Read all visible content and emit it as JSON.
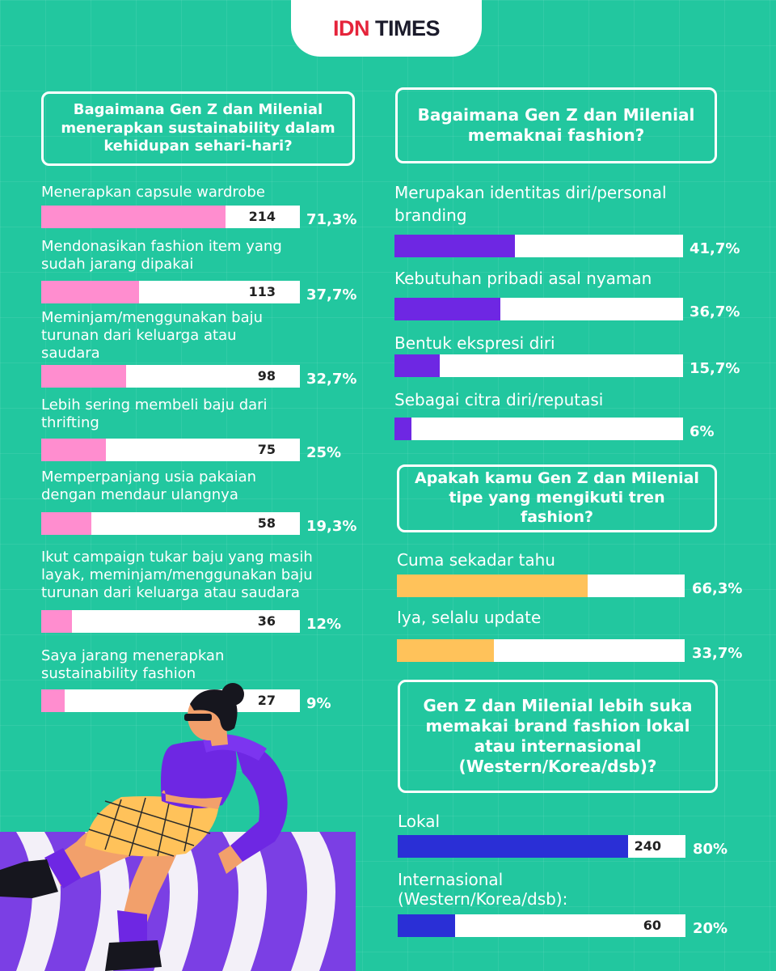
{
  "logo": {
    "brand": "IDN",
    "brand2": "TIMES"
  },
  "colors": {
    "background": "#22c79f",
    "pink": "#ff8dcf",
    "purple": "#6e27e3",
    "orange": "#ffc25a",
    "blue": "#2a2fd6",
    "brand_red": "#e5243b"
  },
  "chart_data": [
    {
      "type": "bar",
      "title": "Bagaimana Gen Z dan Milenial menerapkan sustainability dalam kehidupan sehari-hari?",
      "categories": [
        [
          "Menerapkan capsule wardrobe"
        ],
        [
          "Mendonasikan fashion item yang",
          "sudah jarang dipakai"
        ],
        [
          "Meminjam/menggunakan baju",
          "turunan dari keluarga atau",
          "saudara"
        ],
        [
          "Lebih sering membeli baju dari",
          "thrifting"
        ],
        [
          "Memperpanjang usia pakaian",
          "dengan mendaur ulangnya"
        ],
        [
          "Ikut campaign tukar baju yang masih",
          "layak, meminjam/menggunakan baju",
          "turunan dari keluarga atau saudara"
        ],
        [
          "Saya jarang menerapkan",
          "sustainability fashion"
        ]
      ],
      "counts": [
        "214",
        "113",
        "98",
        "75",
        "58",
        "36",
        "27"
      ],
      "percent_labels": [
        "71,3%",
        "37,7%",
        "32,7%",
        "25%",
        "19,3%",
        "12%",
        "9%"
      ],
      "values": [
        71.3,
        37.7,
        32.7,
        25,
        19.3,
        12,
        9
      ],
      "color": "#ff8dcf"
    },
    {
      "type": "bar",
      "title": "Bagaimana Gen Z dan Milenial memaknai fashion?",
      "categories": [
        [
          "Merupakan identitas diri/personal",
          "branding"
        ],
        [
          "Kebutuhan pribadi asal nyaman"
        ],
        [
          "Bentuk ekspresi diri"
        ],
        [
          "Sebagai citra diri/reputasi"
        ]
      ],
      "counts": [
        "",
        "",
        "",
        ""
      ],
      "percent_labels": [
        "41,7%",
        "36,7%",
        "15,7%",
        "6%"
      ],
      "values": [
        41.7,
        36.7,
        15.7,
        6
      ],
      "color": "#6e27e3"
    },
    {
      "type": "bar",
      "title": "Apakah kamu Gen Z dan Milenial tipe yang mengikuti tren fashion?",
      "categories": [
        [
          "Cuma sekadar tahu"
        ],
        [
          "Iya, selalu update"
        ]
      ],
      "counts": [
        "",
        ""
      ],
      "percent_labels": [
        "66,3%",
        "33,7%"
      ],
      "values": [
        66.3,
        33.7
      ],
      "color": "#ffc25a"
    },
    {
      "type": "bar",
      "title": "Gen Z dan Milenial lebih suka memakai brand fashion lokal atau internasional (Western/Korea/dsb)?",
      "categories": [
        [
          "Lokal"
        ],
        [
          "Internasional",
          "(Western/Korea/dsb):"
        ]
      ],
      "counts": [
        "240",
        "60"
      ],
      "percent_labels": [
        "80%",
        "20%"
      ],
      "values": [
        80,
        20
      ],
      "color": "#2a2fd6"
    }
  ]
}
